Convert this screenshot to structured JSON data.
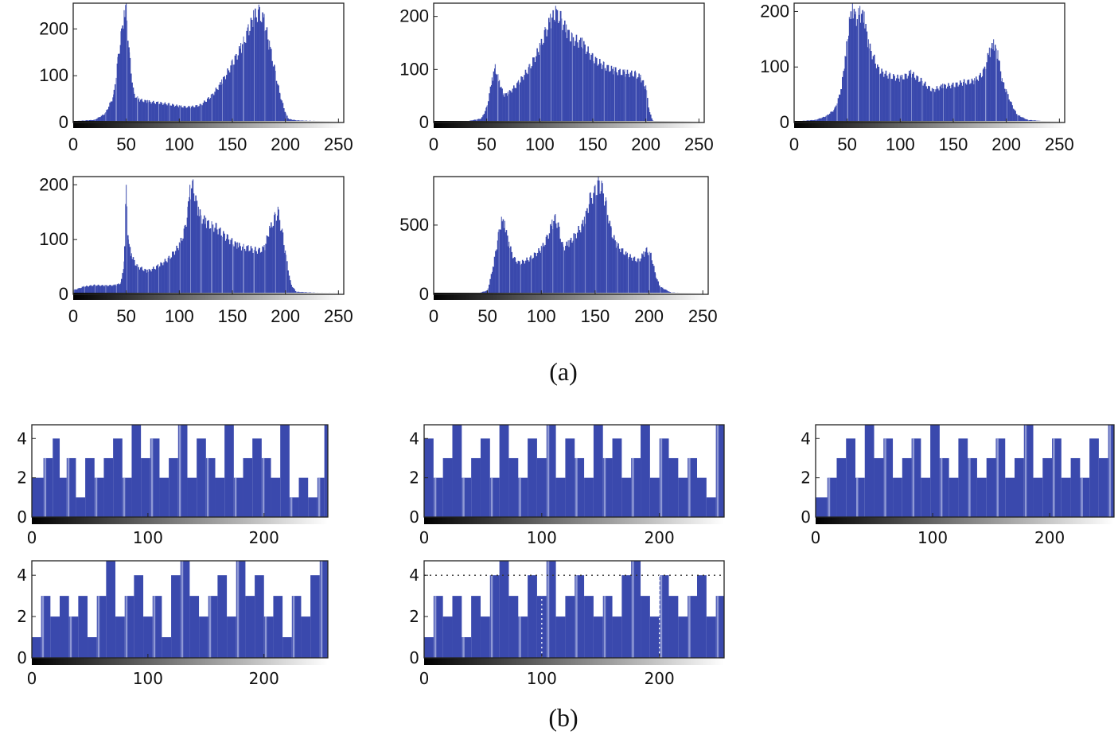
{
  "colors": {
    "bar": "#3a49ad",
    "bar_light": "#8e98d4",
    "frame": "#222222"
  },
  "captions": {
    "a": "(a)",
    "b": "(b)"
  },
  "chart_data": [
    {
      "id": "a1",
      "type": "bar",
      "title": "",
      "xlabel": "",
      "ylabel": "",
      "xlim": [
        0,
        255
      ],
      "ylim": [
        0,
        255
      ],
      "xticks": [
        0,
        50,
        100,
        150,
        200,
        250
      ],
      "yticks": [
        0,
        100,
        200
      ],
      "x": [
        0,
        20,
        30,
        38,
        42,
        45,
        48,
        50,
        53,
        57,
        62,
        70,
        80,
        90,
        100,
        110,
        120,
        130,
        140,
        150,
        158,
        165,
        170,
        175,
        180,
        185,
        190,
        195,
        200,
        203,
        210,
        220,
        240,
        255
      ],
      "values": [
        3,
        6,
        20,
        60,
        140,
        195,
        240,
        255,
        150,
        65,
        52,
        48,
        45,
        42,
        37,
        35,
        40,
        60,
        92,
        135,
        170,
        210,
        240,
        252,
        232,
        175,
        120,
        62,
        22,
        8,
        5,
        4,
        3,
        3
      ]
    },
    {
      "id": "a2",
      "type": "bar",
      "title": "",
      "xlabel": "",
      "ylabel": "",
      "xlim": [
        0,
        255
      ],
      "ylim": [
        0,
        225
      ],
      "xticks": [
        0,
        50,
        100,
        150,
        200,
        250
      ],
      "yticks": [
        0,
        100,
        200
      ],
      "x": [
        0,
        30,
        45,
        50,
        55,
        58,
        62,
        66,
        70,
        80,
        90,
        100,
        105,
        110,
        115,
        120,
        125,
        130,
        140,
        150,
        160,
        170,
        180,
        190,
        195,
        200,
        203,
        206,
        210,
        255
      ],
      "values": [
        0,
        2,
        8,
        30,
        85,
        110,
        80,
        55,
        58,
        80,
        110,
        150,
        180,
        205,
        220,
        210,
        185,
        170,
        160,
        130,
        115,
        105,
        100,
        98,
        90,
        70,
        25,
        5,
        0,
        0
      ]
    },
    {
      "id": "a3",
      "type": "bar",
      "title": "",
      "xlabel": "",
      "ylabel": "",
      "xlim": [
        0,
        255
      ],
      "ylim": [
        0,
        215
      ],
      "xticks": [
        0,
        50,
        100,
        150,
        200,
        250
      ],
      "yticks": [
        0,
        100,
        200
      ],
      "x": [
        0,
        20,
        30,
        38,
        44,
        48,
        52,
        55,
        58,
        62,
        66,
        70,
        80,
        90,
        100,
        110,
        120,
        130,
        140,
        150,
        160,
        170,
        178,
        184,
        188,
        192,
        196,
        200,
        205,
        210,
        220,
        240,
        255
      ],
      "values": [
        2,
        5,
        12,
        25,
        60,
        120,
        190,
        215,
        200,
        210,
        200,
        150,
        100,
        90,
        85,
        95,
        80,
        62,
        70,
        72,
        78,
        80,
        95,
        135,
        150,
        130,
        80,
        60,
        35,
        15,
        5,
        2,
        2
      ]
    },
    {
      "id": "a4",
      "type": "bar",
      "title": "",
      "xlabel": "",
      "ylabel": "",
      "xlim": [
        0,
        255
      ],
      "ylim": [
        0,
        215
      ],
      "xticks": [
        0,
        50,
        100,
        150,
        200,
        250
      ],
      "yticks": [
        0,
        100,
        200
      ],
      "x": [
        0,
        10,
        20,
        30,
        40,
        45,
        48,
        50,
        52,
        55,
        60,
        70,
        80,
        90,
        100,
        105,
        108,
        110,
        113,
        118,
        125,
        135,
        145,
        155,
        165,
        175,
        180,
        185,
        190,
        193,
        197,
        200,
        205,
        210,
        230,
        255
      ],
      "values": [
        8,
        15,
        18,
        17,
        18,
        22,
        60,
        200,
        100,
        75,
        55,
        45,
        55,
        70,
        95,
        125,
        160,
        200,
        210,
        160,
        140,
        130,
        110,
        95,
        90,
        85,
        90,
        125,
        150,
        160,
        120,
        80,
        20,
        5,
        3,
        3
      ]
    },
    {
      "id": "a5",
      "type": "bar",
      "title": "",
      "xlabel": "",
      "ylabel": "",
      "xlim": [
        0,
        255
      ],
      "ylim": [
        0,
        850
      ],
      "xticks": [
        0,
        50,
        100,
        150,
        200,
        250
      ],
      "yticks": [
        0,
        500
      ],
      "x": [
        0,
        40,
        50,
        55,
        60,
        63,
        66,
        70,
        75,
        80,
        90,
        100,
        105,
        110,
        113,
        116,
        120,
        125,
        130,
        140,
        145,
        150,
        153,
        156,
        160,
        165,
        170,
        180,
        190,
        195,
        198,
        202,
        206,
        210,
        220,
        255
      ],
      "values": [
        0,
        5,
        30,
        200,
        450,
        560,
        530,
        380,
        270,
        240,
        280,
        350,
        430,
        540,
        580,
        520,
        360,
        390,
        440,
        560,
        730,
        790,
        850,
        820,
        700,
        480,
        380,
        300,
        260,
        310,
        340,
        300,
        150,
        60,
        15,
        0
      ]
    },
    {
      "id": "b1",
      "type": "bar",
      "title": "",
      "xlabel": "",
      "ylabel": "",
      "xlim": [
        0,
        255
      ],
      "ylim": [
        0,
        4.7
      ],
      "xticks": [
        0,
        100,
        200
      ],
      "yticks": [
        0,
        2,
        4
      ],
      "x": [
        0,
        10,
        18,
        24,
        30,
        38,
        46,
        54,
        62,
        70,
        78,
        86,
        94,
        102,
        110,
        118,
        126,
        134,
        142,
        150,
        158,
        166,
        174,
        182,
        190,
        198,
        206,
        214,
        222,
        230,
        238,
        246,
        252,
        255
      ],
      "values": [
        2,
        3,
        4,
        2,
        3,
        1,
        3,
        2,
        3,
        4,
        2,
        5,
        3,
        4,
        2,
        3,
        5,
        2,
        4,
        3,
        2,
        5,
        2,
        3,
        4,
        3,
        2,
        5,
        1,
        2,
        1,
        2,
        5,
        4
      ]
    },
    {
      "id": "b2",
      "type": "bar",
      "title": "",
      "xlabel": "",
      "ylabel": "",
      "xlim": [
        0,
        255
      ],
      "ylim": [
        0,
        4.7
      ],
      "xticks": [
        0,
        100,
        200
      ],
      "yticks": [
        0,
        2,
        4
      ],
      "x": [
        0,
        8,
        16,
        24,
        32,
        40,
        48,
        56,
        64,
        72,
        80,
        88,
        96,
        104,
        112,
        120,
        128,
        136,
        144,
        152,
        160,
        168,
        176,
        184,
        192,
        200,
        208,
        216,
        224,
        232,
        240,
        248,
        255
      ],
      "values": [
        4,
        2,
        3,
        5,
        2,
        3,
        4,
        2,
        5,
        3,
        2,
        4,
        3,
        5,
        2,
        4,
        3,
        2,
        5,
        3,
        4,
        2,
        3,
        5,
        2,
        4,
        3,
        2,
        3,
        2,
        1,
        5,
        2
      ]
    },
    {
      "id": "b3",
      "type": "bar",
      "title": "",
      "xlabel": "",
      "ylabel": "",
      "xlim": [
        0,
        255
      ],
      "ylim": [
        0,
        4.7
      ],
      "xticks": [
        0,
        100,
        200
      ],
      "yticks": [
        0,
        2,
        4
      ],
      "x": [
        0,
        10,
        18,
        26,
        34,
        42,
        50,
        58,
        66,
        74,
        82,
        90,
        98,
        106,
        114,
        122,
        130,
        138,
        146,
        154,
        162,
        170,
        178,
        186,
        194,
        202,
        210,
        218,
        226,
        234,
        242,
        250,
        255
      ],
      "values": [
        1,
        2,
        3,
        4,
        2,
        5,
        3,
        4,
        2,
        3,
        4,
        2,
        5,
        3,
        2,
        4,
        3,
        2,
        3,
        4,
        2,
        3,
        5,
        2,
        3,
        4,
        2,
        3,
        2,
        4,
        3,
        5,
        1
      ]
    },
    {
      "id": "b4",
      "type": "bar",
      "title": "",
      "xlabel": "",
      "ylabel": "",
      "xlim": [
        0,
        255
      ],
      "ylim": [
        0,
        4.7
      ],
      "xticks": [
        0,
        100,
        200
      ],
      "yticks": [
        0,
        2,
        4
      ],
      "x": [
        0,
        8,
        16,
        24,
        32,
        40,
        48,
        56,
        64,
        72,
        80,
        88,
        96,
        104,
        112,
        120,
        128,
        136,
        144,
        152,
        160,
        168,
        176,
        184,
        192,
        200,
        208,
        216,
        224,
        232,
        240,
        248,
        255
      ],
      "values": [
        1,
        3,
        2,
        3,
        2,
        3,
        1,
        3,
        5,
        2,
        3,
        4,
        2,
        3,
        1,
        4,
        5,
        3,
        2,
        3,
        4,
        2,
        5,
        3,
        4,
        2,
        3,
        1,
        3,
        2,
        4,
        5,
        2
      ]
    },
    {
      "id": "b5",
      "type": "bar",
      "title": "",
      "xlabel": "",
      "ylabel": "",
      "xlim": [
        0,
        255
      ],
      "ylim": [
        0,
        4.7
      ],
      "xticks": [
        0,
        100,
        200
      ],
      "yticks": [
        0,
        2,
        4
      ],
      "x": [
        0,
        8,
        16,
        24,
        32,
        40,
        48,
        56,
        64,
        72,
        80,
        88,
        96,
        104,
        112,
        120,
        128,
        136,
        144,
        152,
        160,
        168,
        176,
        184,
        192,
        200,
        208,
        216,
        224,
        232,
        240,
        248,
        255
      ],
      "values": [
        1,
        3,
        2,
        3,
        1,
        3,
        2,
        4,
        5,
        3,
        2,
        4,
        3,
        5,
        2,
        3,
        4,
        3,
        2,
        3,
        2,
        4,
        5,
        3,
        2,
        4,
        3,
        2,
        3,
        4,
        2,
        3,
        1
      ],
      "reference_line_y": 4,
      "reference_lines_x": [
        100,
        200
      ]
    }
  ]
}
